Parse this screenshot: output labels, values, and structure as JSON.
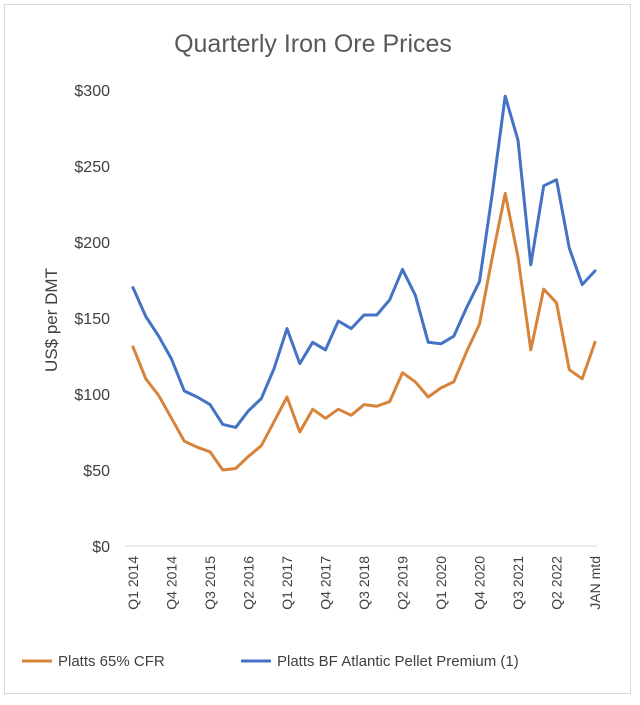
{
  "chart_data": {
    "type": "line",
    "title": "Quarterly Iron Ore Prices",
    "ylabel": "US$ per DMT",
    "xlabel": "",
    "ylim": [
      0,
      300
    ],
    "y_ticks": [
      0,
      50,
      100,
      150,
      200,
      250,
      300
    ],
    "y_tick_labels": [
      "$0",
      "$50",
      "$100",
      "$150",
      "$200",
      "$250",
      "$300"
    ],
    "x_tick_labels": [
      "Q1 2014",
      "Q4 2014",
      "Q3 2015",
      "Q2 2016",
      "Q1 2017",
      "Q4 2017",
      "Q3 2018",
      "Q2 2019",
      "Q1 2020",
      "Q4 2020",
      "Q3 2021",
      "Q2 2022",
      "JAN mtd"
    ],
    "x_tick_indices": [
      0,
      3,
      6,
      9,
      12,
      15,
      18,
      21,
      24,
      27,
      30,
      33,
      36
    ],
    "x_count": 37,
    "grid": false,
    "legend_position": "bottom",
    "series": [
      {
        "name": "Platts 65% CFR",
        "color": "#D7843A",
        "values": [
          131,
          110,
          99,
          84,
          69,
          65,
          62,
          50,
          51,
          59,
          66,
          82,
          98,
          75,
          90,
          84,
          90,
          86,
          93,
          92,
          95,
          114,
          108,
          98,
          104,
          108,
          128,
          146,
          190,
          232,
          190,
          129,
          169,
          160,
          116,
          110,
          134
        ]
      },
      {
        "name": "Platts BF Atlantic Pellet Premium (1)",
        "color": "#4472C4",
        "values": [
          170,
          151,
          138,
          123,
          102,
          98,
          93,
          80,
          78,
          89,
          97,
          117,
          143,
          120,
          134,
          129,
          148,
          143,
          152,
          152,
          162,
          182,
          165,
          134,
          133,
          138,
          157,
          174,
          232,
          296,
          267,
          185,
          237,
          241,
          196,
          172,
          181
        ]
      }
    ]
  }
}
